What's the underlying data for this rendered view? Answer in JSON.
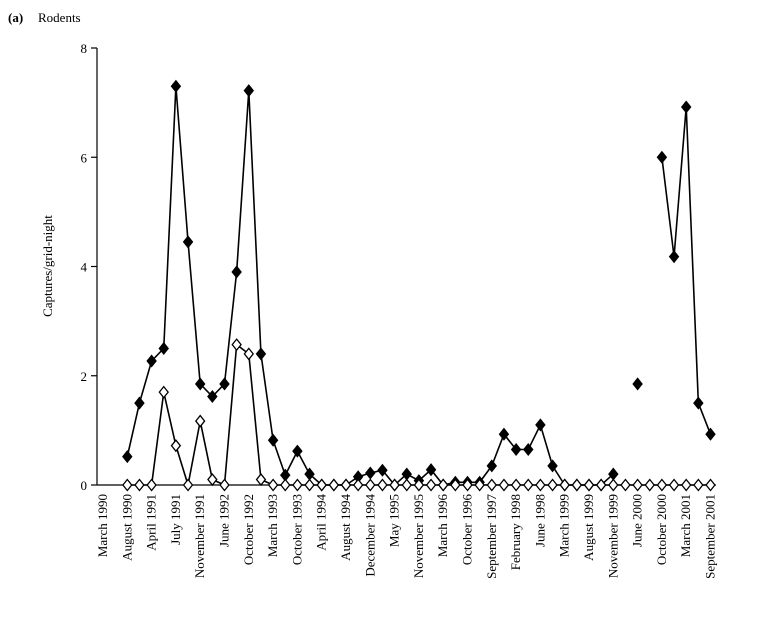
{
  "chart_data": {
    "type": "line",
    "panel_label": "(a)",
    "title": "Rodents",
    "y_label": "Captures/grid-night",
    "categories": [
      "March 1990",
      null,
      "August 1990",
      null,
      "April 1991",
      null,
      "July 1991",
      null,
      "November 1991",
      null,
      "June 1992",
      null,
      "October 1992",
      null,
      "March 1993",
      null,
      "October 1993",
      null,
      "April 1994",
      null,
      "August 1994",
      null,
      "December 1994",
      null,
      "May 1995",
      null,
      "November 1995",
      null,
      "March 1996",
      null,
      "October 1996",
      null,
      "September 1997",
      null,
      "February 1998",
      null,
      "June 1998",
      null,
      "March 1999",
      null,
      "August 1999",
      null,
      "November 1999",
      null,
      "June 2000",
      null,
      "October 2000",
      null,
      "March 2001",
      null,
      "September 2001"
    ],
    "series": [
      {
        "color": "#000000",
        "marker_fill": "#000000",
        "values": [
          null,
          null,
          0.52,
          1.5,
          2.27,
          2.5,
          7.3,
          4.45,
          1.85,
          1.62,
          1.85,
          3.9,
          7.22,
          2.4,
          0.82,
          0.18,
          0.62,
          0.2,
          0,
          0,
          0,
          0.15,
          0.22,
          0.27,
          0,
          0.2,
          0.08,
          0.28,
          0,
          0.05,
          0.05,
          0.05,
          0.35,
          0.93,
          0.65,
          0.65,
          1.1,
          0.35,
          0,
          0,
          0,
          0,
          0.2,
          null,
          1.85,
          null,
          6.0,
          4.18,
          6.92,
          1.5,
          0.93
        ]
      },
      {
        "color": "#000000",
        "marker_fill": "#ffffff",
        "values": [
          null,
          null,
          0,
          0,
          0,
          1.7,
          0.72,
          0,
          1.17,
          0.1,
          0,
          2.57,
          2.4,
          0.1,
          0,
          0,
          0,
          0,
          0,
          0,
          0,
          0,
          0,
          0,
          0,
          0,
          0,
          0,
          0,
          0,
          0,
          0,
          0,
          0,
          0,
          0,
          0,
          0,
          0,
          0,
          0,
          0,
          0,
          0,
          0,
          0,
          0,
          0,
          0,
          0,
          0
        ]
      }
    ],
    "ylim": [
      0,
      8
    ],
    "yticks": [
      0,
      2,
      4,
      6,
      8
    ],
    "grid": false
  }
}
